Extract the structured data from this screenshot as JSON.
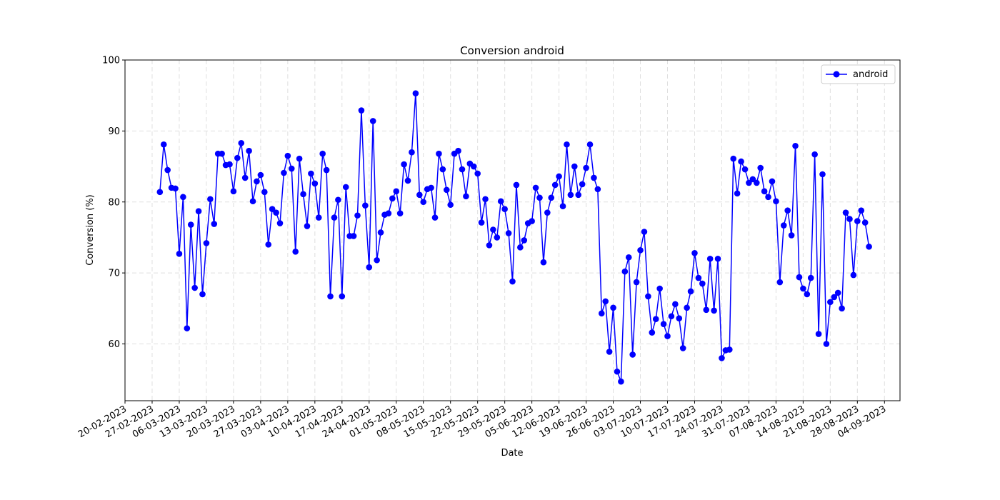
{
  "chart_data": {
    "type": "line",
    "title": "Conversion android",
    "xlabel": "Date",
    "ylabel": "Conversion (%)",
    "ylim": [
      52,
      100
    ],
    "xlim": [
      "2023-02-20",
      "2023-09-08"
    ],
    "grid": true,
    "legend": "top-right",
    "yticks": [
      60,
      70,
      80,
      90,
      100
    ],
    "xticks": [
      "20-02-2023",
      "27-02-2023",
      "06-03-2023",
      "13-03-2023",
      "20-03-2023",
      "27-03-2023",
      "03-04-2023",
      "10-04-2023",
      "17-04-2023",
      "24-04-2023",
      "01-05-2023",
      "08-05-2023",
      "15-05-2023",
      "22-05-2023",
      "29-05-2023",
      "05-06-2023",
      "12-06-2023",
      "19-06-2023",
      "26-06-2023",
      "03-07-2023",
      "10-07-2023",
      "17-07-2023",
      "24-07-2023",
      "31-07-2023",
      "07-08-2023",
      "14-08-2023",
      "21-08-2023",
      "28-08-2023",
      "04-09-2023"
    ],
    "series": [
      {
        "name": "android",
        "color": "#0000ff",
        "start_date": "2023-03-01",
        "values": [
          81.4,
          88.1,
          84.5,
          82.0,
          81.9,
          72.7,
          80.7,
          62.2,
          76.8,
          67.9,
          78.7,
          67.0,
          74.2,
          80.4,
          76.9,
          86.8,
          86.8,
          85.2,
          85.3,
          81.5,
          86.2,
          88.3,
          83.4,
          87.2,
          80.1,
          82.9,
          83.8,
          81.4,
          74.0,
          79.0,
          78.5,
          77.0,
          84.1,
          86.5,
          84.7,
          73.0,
          86.1,
          81.1,
          76.6,
          84.0,
          82.6,
          77.8,
          86.8,
          84.5,
          66.7,
          77.8,
          80.3,
          66.7,
          82.1,
          75.2,
          75.2,
          78.1,
          92.9,
          79.5,
          70.8,
          91.4,
          71.8,
          75.7,
          78.2,
          78.4,
          80.5,
          81.5,
          78.4,
          85.3,
          83.0,
          87.0,
          95.3,
          81.0,
          80.0,
          81.8,
          82.0,
          77.8,
          86.8,
          84.6,
          81.7,
          79.6,
          86.8,
          87.2,
          84.6,
          80.8,
          85.4,
          85.0,
          84.0,
          77.1,
          80.4,
          73.9,
          76.1,
          75.0,
          80.1,
          79.0,
          75.6,
          68.8,
          82.4,
          73.6,
          74.6,
          77.0,
          77.3,
          82.0,
          80.6,
          71.5,
          78.5,
          80.6,
          82.4,
          83.6,
          79.4,
          88.1,
          81.0,
          85.0,
          81.0,
          82.5,
          84.8,
          88.1,
          83.4,
          81.8,
          64.3,
          66.0,
          58.9,
          65.1,
          56.1,
          54.7,
          70.2,
          72.2,
          58.5,
          68.7,
          73.2,
          75.8,
          66.7,
          61.6,
          63.5,
          67.8,
          62.8,
          61.1,
          63.9,
          65.6,
          63.6,
          59.4,
          65.1,
          67.4,
          72.8,
          69.3,
          68.5,
          64.8,
          72.0,
          64.7,
          72.0,
          58.0,
          59.1,
          59.2,
          86.1,
          81.2,
          85.7,
          84.6,
          82.7,
          83.2,
          82.7,
          84.8,
          81.5,
          80.7,
          82.9,
          80.1,
          68.7,
          76.7,
          78.8,
          75.3,
          87.9,
          69.4,
          67.8,
          67.0,
          69.3,
          86.7,
          61.4,
          83.9,
          60.0,
          65.9,
          66.6,
          67.2,
          65.0,
          78.5,
          77.6,
          69.7,
          77.3,
          78.8,
          77.1,
          73.7
        ]
      }
    ]
  }
}
